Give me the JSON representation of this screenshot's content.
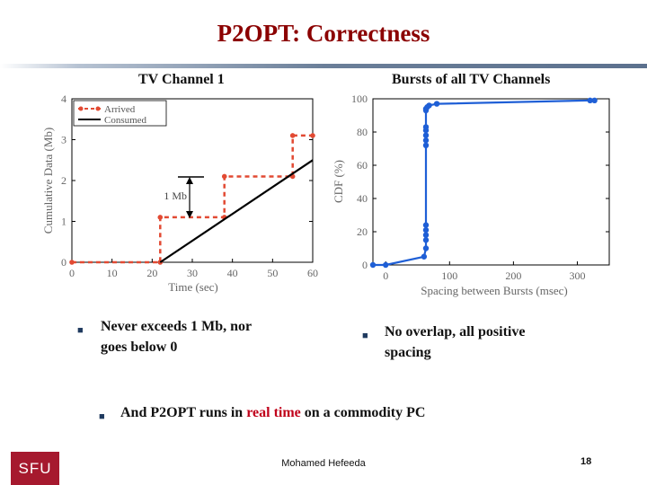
{
  "slide": {
    "title": "P2OPT: Correctness",
    "footer": "Mohamed  Hefeeda",
    "page_number": "18",
    "logo_text": "SFU"
  },
  "bullets": {
    "left": [
      "Never exceeds 1 Mb, nor",
      "goes below 0"
    ],
    "right": [
      "No overlap, all positive",
      "spacing"
    ],
    "bottom_pre": "And P2OPT runs in ",
    "bottom_highlight": "real time",
    "bottom_post": " on a commodity PC"
  },
  "colors": {
    "title": "#8b0000",
    "arrived": "#e24a33",
    "consumed": "#000000",
    "cdf": "#1f5fd6",
    "highlight": "#c0001a"
  },
  "chart_data": [
    {
      "type": "line",
      "title": "TV Channel 1",
      "xlabel": "Time (sec)",
      "ylabel": "Cumulative Data (Mb)",
      "xlim": [
        0,
        60
      ],
      "ylim": [
        0,
        4
      ],
      "xticks": [
        "0",
        "10",
        "20",
        "30",
        "40",
        "50",
        "60"
      ],
      "yticks": [
        "0",
        "1",
        "2",
        "3",
        "4"
      ],
      "legend": "top-left",
      "annotation": "1 Mb",
      "series": [
        {
          "name": "Arrived",
          "style": "dashed-markers",
          "x": [
            0,
            22,
            22,
            38,
            38,
            55,
            55,
            60
          ],
          "y": [
            0,
            0,
            1.1,
            1.1,
            2.1,
            2.1,
            3.1,
            3.1
          ]
        },
        {
          "name": "Consumed",
          "style": "solid",
          "x": [
            22,
            60
          ],
          "y": [
            0,
            2.5
          ]
        }
      ]
    },
    {
      "type": "line",
      "title": "Bursts of all TV Channels",
      "xlabel": "Spacing between Bursts (msec)",
      "ylabel": "CDF (%)",
      "xlim": [
        -20,
        350
      ],
      "ylim": [
        0,
        100
      ],
      "xticks": [
        "0",
        "100",
        "200",
        "300"
      ],
      "yticks": [
        "0",
        "20",
        "40",
        "60",
        "80",
        "100"
      ],
      "series": [
        {
          "name": "",
          "x": [
            -20,
            0,
            60,
            63,
            63,
            63,
            63,
            63,
            63,
            63,
            63,
            63,
            63,
            63,
            63,
            65,
            68,
            80,
            320,
            327
          ],
          "y": [
            0,
            0,
            5,
            10,
            15,
            18,
            21,
            24,
            72,
            75,
            78,
            81,
            83,
            93,
            94,
            95,
            96,
            97,
            99,
            99
          ]
        }
      ]
    }
  ]
}
